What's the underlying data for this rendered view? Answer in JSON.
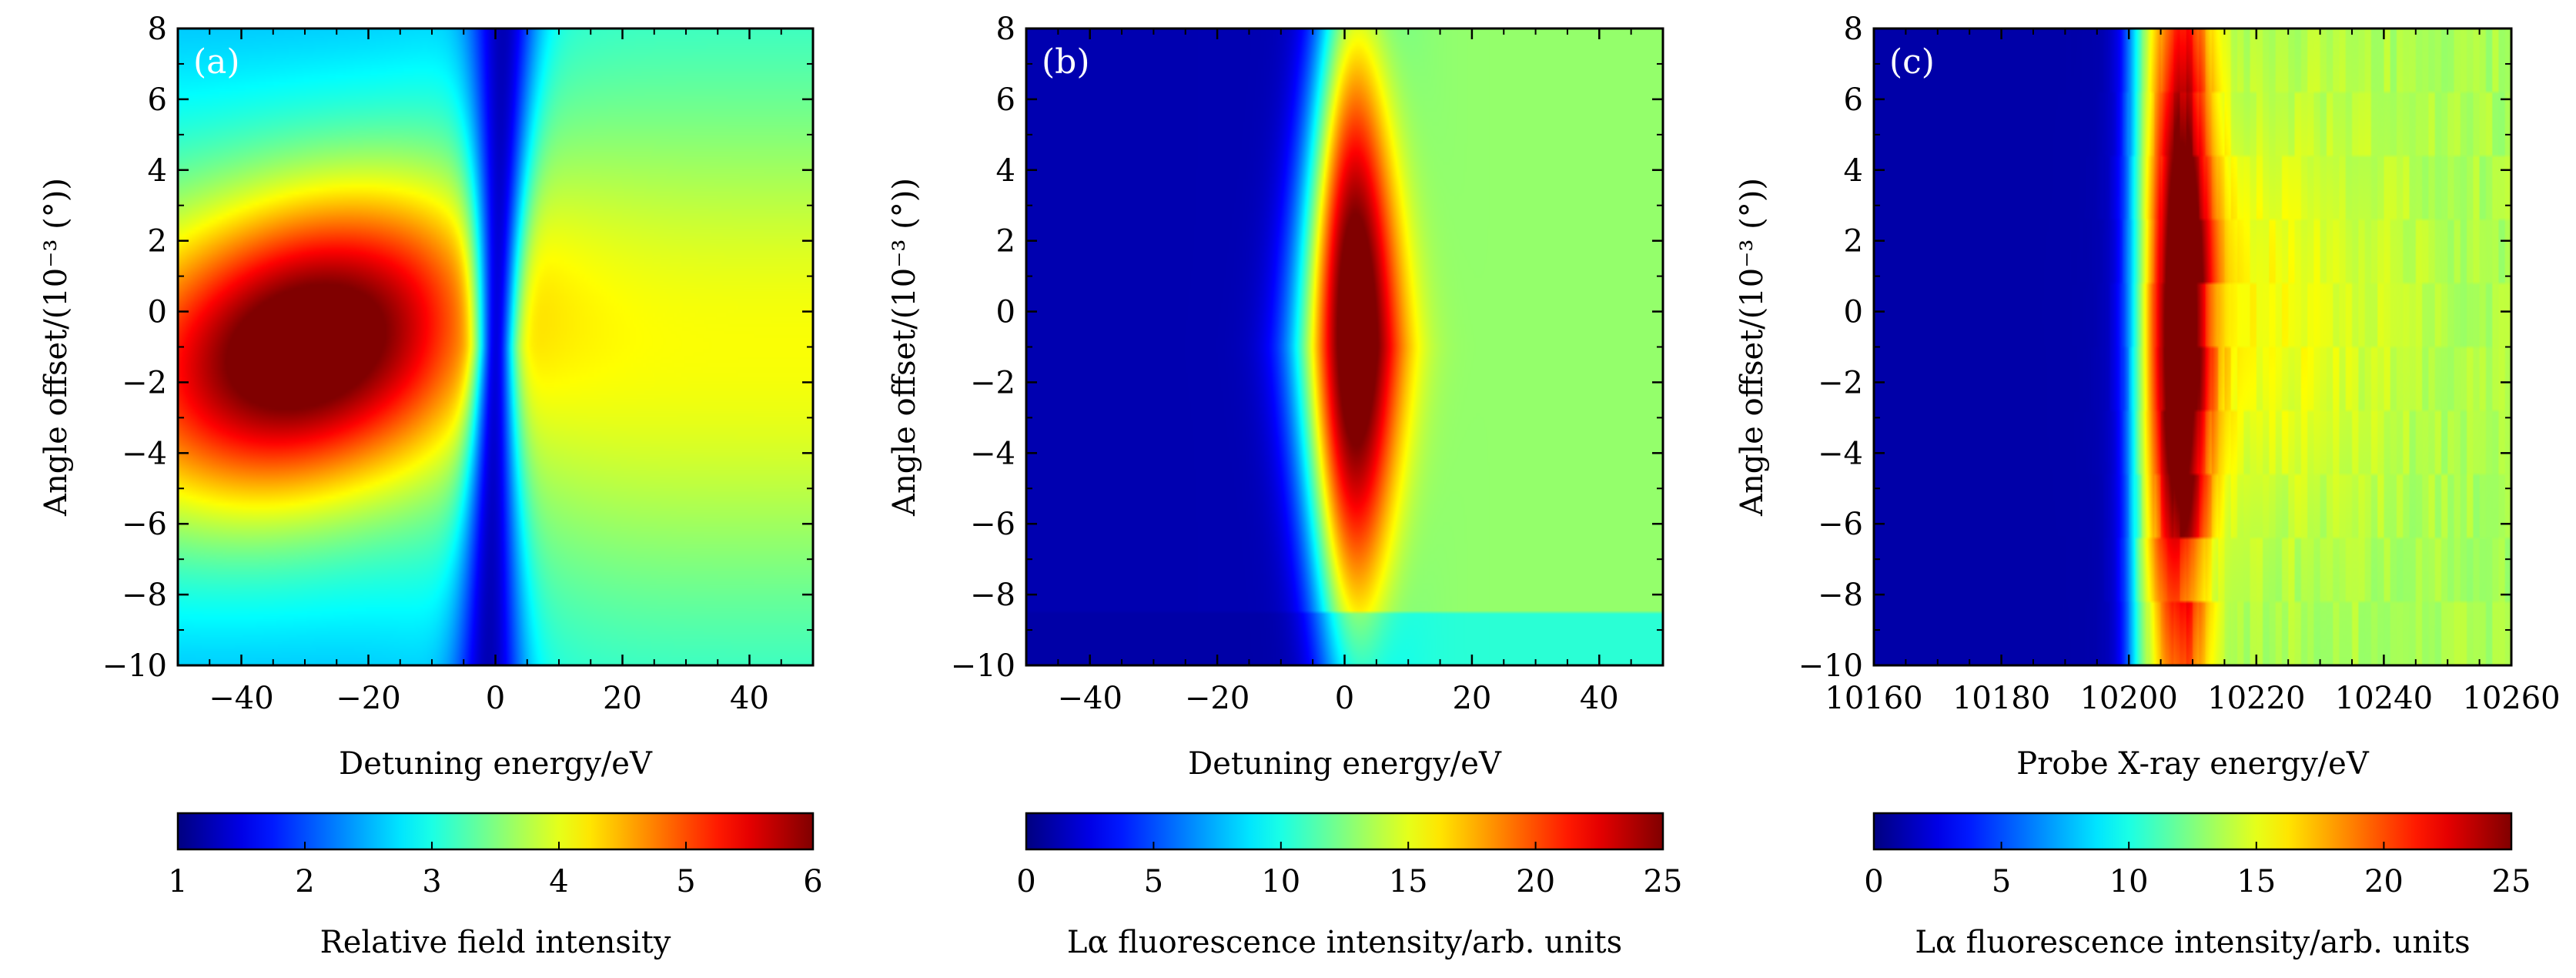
{
  "chart_data": [
    {
      "type": "heatmap",
      "panel_label": "(a)",
      "xlabel": "Detuning energy/eV",
      "ylabel": "Angle offset/(10⁻³ (°))",
      "xlim": [
        -50,
        50
      ],
      "ylim": [
        -10,
        8
      ],
      "xticks": [
        -40,
        -20,
        0,
        20,
        40
      ],
      "yticks": [
        -10,
        -8,
        -6,
        -4,
        -2,
        0,
        2,
        4,
        6,
        8
      ],
      "xtick_labels": [
        "−40",
        "−20",
        "0",
        "20",
        "40"
      ],
      "ytick_labels": [
        "−10",
        "−8",
        "−6",
        "−4",
        "−2",
        "0",
        "2",
        "4",
        "6",
        "8"
      ],
      "colormap": "jet",
      "colorbar": {
        "label": "Relative field intensity",
        "range": [
          1,
          6
        ],
        "ticks": [
          1,
          2,
          3,
          4,
          5,
          6
        ],
        "tick_labels": [
          "1",
          "2",
          "3",
          "4",
          "5",
          "6"
        ]
      },
      "features": {
        "max_region": {
          "x": -30,
          "y": -1,
          "value": 6
        },
        "min_ridge": {
          "x": 0,
          "value": 1
        },
        "right_plateau_value": 4
      }
    },
    {
      "type": "heatmap",
      "panel_label": "(b)",
      "xlabel": "Detuning energy/eV",
      "ylabel": "Angle offset/(10⁻³ (°))",
      "xlim": [
        -50,
        50
      ],
      "ylim": [
        -10,
        8
      ],
      "xticks": [
        -40,
        -20,
        0,
        20,
        40
      ],
      "yticks": [
        -10,
        -8,
        -6,
        -4,
        -2,
        0,
        2,
        4,
        6,
        8
      ],
      "xtick_labels": [
        "−40",
        "−20",
        "0",
        "20",
        "40"
      ],
      "ytick_labels": [
        "−10",
        "−8",
        "−6",
        "−4",
        "−2",
        "0",
        "2",
        "4",
        "6",
        "8"
      ],
      "colormap": "jet",
      "colorbar": {
        "label": "Lα fluorescence intensity/arb. units",
        "range": [
          0,
          25
        ],
        "ticks": [
          0,
          5,
          10,
          15,
          20,
          25
        ],
        "tick_labels": [
          "0",
          "5",
          "10",
          "15",
          "20",
          "25"
        ]
      },
      "features": {
        "peak": {
          "x": 0,
          "y": 0,
          "value": 24
        },
        "left_background_value": 1,
        "right_background_value": 13
      }
    },
    {
      "type": "heatmap",
      "panel_label": "(c)",
      "xlabel": "Probe X-ray energy/eV",
      "ylabel": "Angle offset/(10⁻³ (°))",
      "xlim": [
        10160,
        10260
      ],
      "ylim": [
        -10,
        8
      ],
      "xticks": [
        10160,
        10180,
        10200,
        10220,
        10240,
        10260
      ],
      "yticks": [
        -10,
        -8,
        -6,
        -4,
        -2,
        0,
        2,
        4,
        6,
        8
      ],
      "xtick_labels": [
        "10160",
        "10180",
        "10200",
        "10220",
        "10240",
        "10260"
      ],
      "ytick_labels": [
        "−10",
        "−8",
        "−6",
        "−4",
        "−2",
        "0",
        "2",
        "4",
        "6",
        "8"
      ],
      "colormap": "jet",
      "colorbar": {
        "label": "Lα fluorescence intensity/arb. units",
        "range": [
          0,
          25
        ],
        "ticks": [
          0,
          5,
          10,
          15,
          20,
          25
        ],
        "tick_labels": [
          "0",
          "5",
          "10",
          "15",
          "20",
          "25"
        ]
      },
      "features": {
        "edge_energy": 10200,
        "peak_energy": 10207,
        "peak_value": 24,
        "measured_angles": [
          7,
          5,
          3.5,
          1.5,
          0,
          -1.5,
          -3.5,
          -5.5,
          -7.5,
          -9.5
        ]
      }
    }
  ]
}
